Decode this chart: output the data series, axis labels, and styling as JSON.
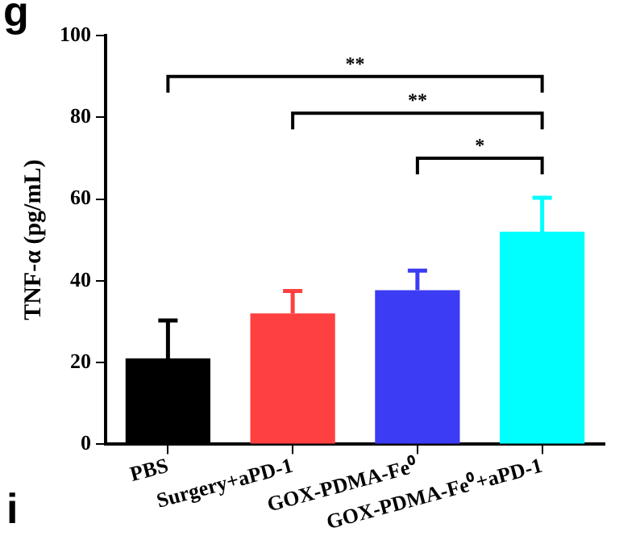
{
  "chart_data": {
    "type": "bar",
    "ylabel": "TNF-α (pg/mL)",
    "categories": [
      "PBS",
      "Surgery+aPD-1",
      "GOX-PDMA-Fe⁰",
      "GOX-PDMA-Fe⁰+aPD-1"
    ],
    "values": [
      21,
      32,
      37.7,
      52
    ],
    "colors": [
      "#000000",
      "#ff4040",
      "#3c3cf5",
      "#00ffff"
    ],
    "errors": [
      [
        21,
        30.3
      ],
      [
        32,
        37.5
      ],
      [
        37.7,
        42.5
      ],
      [
        52,
        60.3
      ]
    ],
    "ylim": [
      0,
      100
    ],
    "yticks": [
      0,
      20,
      40,
      60,
      80,
      100
    ],
    "grid": false,
    "legend": false,
    "annotations": [
      "g",
      "**",
      "**",
      "*",
      "i"
    ]
  }
}
